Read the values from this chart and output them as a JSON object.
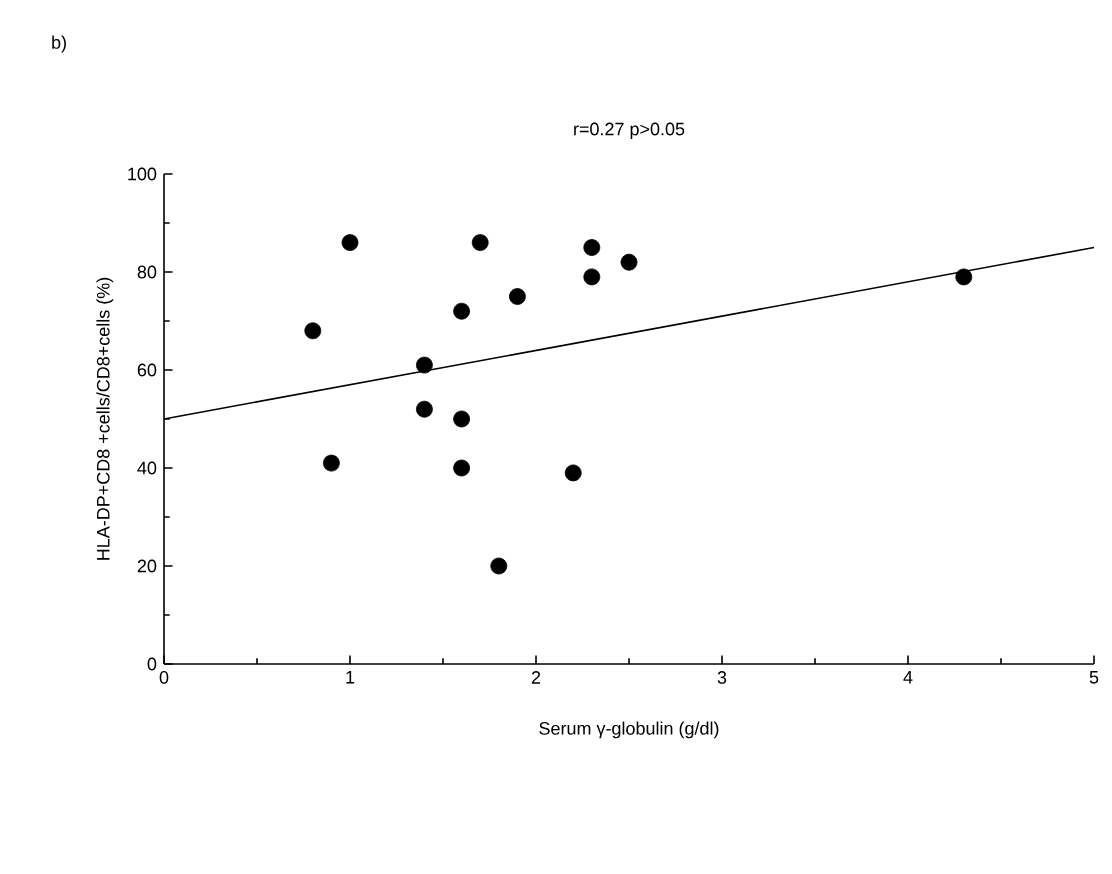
{
  "chart_data": {
    "type": "scatter",
    "title": "r=0.27     p>0.05",
    "annotations": [
      "b)"
    ],
    "xlabel": "Serum γ-globulin (g/dl)",
    "ylabel": "HLA-DP+CD8 +cells/CD8+cells (%)",
    "xlim": [
      0,
      5
    ],
    "ylim": [
      0,
      100
    ],
    "xticks": [
      0,
      1,
      2,
      3,
      4,
      5
    ],
    "yticks": [
      0,
      20,
      40,
      60,
      80,
      100
    ],
    "series": [
      {
        "marker": "circle",
        "color": "#000000",
        "x": [
          1.0,
          0.8,
          0.9,
          1.4,
          1.4,
          1.6,
          1.6,
          1.6,
          1.7,
          1.8,
          1.9,
          2.2,
          2.3,
          2.3,
          2.5,
          4.3
        ],
        "values": [
          86,
          68,
          41,
          61,
          52,
          72,
          50,
          40,
          86,
          20,
          75,
          39,
          85,
          79,
          82,
          79
        ]
      },
      {
        "type": "line",
        "marker": "none",
        "color": "#000000",
        "x": [
          0,
          5
        ],
        "values": [
          50,
          85
        ]
      }
    ]
  }
}
